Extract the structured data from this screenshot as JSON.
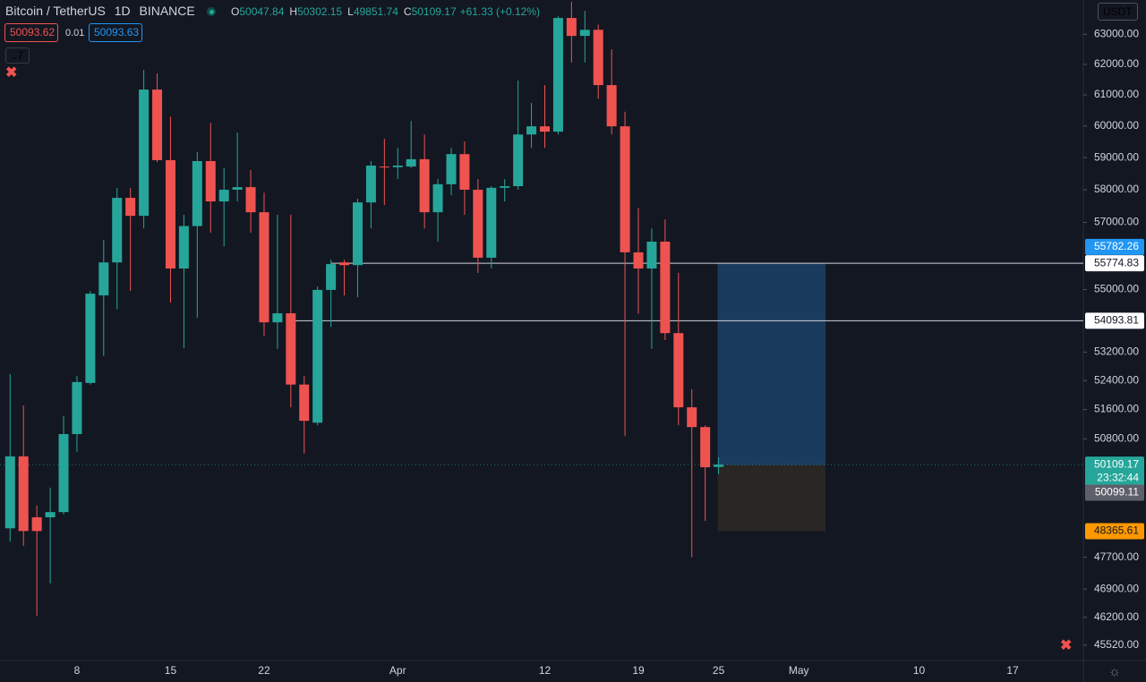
{
  "chart_data": {
    "type": "candlestick",
    "title": "Bitcoin / TetherUS",
    "interval": "1D",
    "exchange": "BINANCE",
    "ohlc_legend": [
      {
        "key": "O",
        "value": "50047.84"
      },
      {
        "key": "H",
        "value": "50302.15"
      },
      {
        "key": "L",
        "value": "49851.74"
      },
      {
        "key": "C",
        "value": "50109.17"
      }
    ],
    "change": "+61.33 (+0.12%)",
    "sell_price": "50093.62",
    "spread": "0.01",
    "buy_price": "50093.63",
    "indicators_count": "7",
    "currency": "USDT",
    "countdown": "23:32:44",
    "log_scale": true,
    "grid": false,
    "up_color": "#26a69a",
    "down_color": "#ef5350",
    "categories": [
      null,
      null,
      null,
      null,
      null,
      "8",
      null,
      null,
      null,
      null,
      null,
      null,
      "15",
      null,
      null,
      null,
      null,
      null,
      null,
      "22",
      null,
      null,
      null,
      null,
      null,
      null,
      null,
      null,
      null,
      "Apr",
      null,
      null,
      null,
      null,
      null,
      null,
      null,
      null,
      null,
      null,
      "12",
      null,
      null,
      null,
      null,
      null,
      null,
      "19",
      null,
      null,
      null,
      null,
      null,
      "25",
      null,
      null,
      null,
      null,
      null,
      "May",
      null,
      null,
      null,
      null,
      null,
      null,
      null,
      null,
      "10",
      null,
      null,
      null,
      null,
      null,
      null,
      "17",
      null,
      null,
      null,
      null,
      null
    ],
    "open": [
      48440,
      50330,
      48725,
      48725,
      48860,
      50930,
      52335,
      54830,
      55800,
      57750,
      57200,
      61175,
      58920,
      55620,
      56890,
      58890,
      57640,
      58000,
      58080,
      57310,
      54050,
      54310,
      52290,
      51240,
      54990,
      55800,
      55720,
      57610,
      58720,
      58700,
      58720,
      58950,
      57310,
      58170,
      59110,
      58000,
      55940,
      58060,
      58110,
      59730,
      59990,
      59820,
      63550,
      62946,
      63150,
      61320,
      59990,
      56100,
      55620,
      56420,
      53740,
      51660,
      51120,
      50047.84,
      null,
      null,
      null,
      null,
      null,
      null,
      null,
      null,
      null,
      null,
      null,
      null,
      null,
      null,
      null,
      null,
      null,
      null,
      null,
      null,
      null,
      null,
      null,
      null,
      null,
      null,
      null
    ],
    "high": [
      52585,
      51710,
      49030,
      49500,
      51420,
      52535,
      54960,
      56470,
      58055,
      58055,
      61820,
      61700,
      60300,
      57230,
      59170,
      60100,
      58670,
      59790,
      58610,
      57910,
      57230,
      57230,
      52535,
      55093,
      55880,
      55880,
      57720,
      58891,
      59590,
      59310,
      60160,
      59730,
      58330,
      59310,
      59510,
      58330,
      58110,
      58330,
      61470,
      60740,
      61320,
      63610,
      64100,
      63790,
      63330,
      62500,
      60460,
      57440,
      56820,
      57090,
      55490,
      52160,
      51170,
      50302.15,
      null,
      null,
      null,
      null,
      null,
      null,
      null,
      null,
      null,
      null,
      null,
      null,
      null,
      null,
      null,
      null,
      null,
      null,
      null,
      null,
      null,
      null,
      null,
      null,
      null,
      null,
      null
    ],
    "low": [
      48100,
      47990,
      46240,
      47040,
      48800,
      50450,
      52290,
      53090,
      54430,
      54960,
      56820,
      58860,
      54620,
      53310,
      54180,
      56690,
      56280,
      57640,
      56690,
      53670,
      53290,
      51660,
      50400,
      51170,
      53920,
      54830,
      54780,
      56820,
      57530,
      58330,
      58670,
      56820,
      56420,
      57830,
      57230,
      55490,
      55620,
      57640,
      58000,
      59310,
      59310,
      59730,
      62060,
      62060,
      60880,
      59730,
      50880,
      54300,
      53290,
      53540,
      51170,
      47700,
      48630,
      49851.74,
      null,
      null,
      null,
      null,
      null,
      null,
      null,
      null,
      null,
      null,
      null,
      null,
      null,
      null,
      null,
      null,
      null,
      null,
      null,
      null,
      null,
      null,
      null,
      null,
      null,
      null,
      null
    ],
    "close": [
      50330,
      48370,
      48370,
      48860,
      50930,
      52360,
      54880,
      55800,
      57750,
      57200,
      61175,
      58920,
      55620,
      56890,
      58890,
      57640,
      58000,
      58080,
      57310,
      54050,
      54310,
      52290,
      51290,
      54990,
      55750,
      55720,
      57610,
      58750,
      58700,
      58750,
      58950,
      57310,
      58170,
      59110,
      58000,
      55940,
      58060,
      58110,
      59730,
      59990,
      59820,
      63550,
      62946,
      63150,
      61320,
      59990,
      56100,
      55620,
      56420,
      53740,
      51660,
      51120,
      50040,
      50109.17,
      null,
      null,
      null,
      null,
      null,
      null,
      null,
      null,
      null,
      null,
      null,
      null,
      null,
      null,
      null,
      null,
      null,
      null,
      null,
      null,
      null,
      null,
      null,
      null,
      null,
      null,
      null
    ],
    "ylim": [
      45150,
      64160
    ],
    "yticks": [
      {
        "value": 63000,
        "label": "63000.00"
      },
      {
        "value": 62000,
        "label": "62000.00"
      },
      {
        "value": 61000,
        "label": "61000.00"
      },
      {
        "value": 60000,
        "label": "60000.00"
      },
      {
        "value": 59000,
        "label": "59000.00"
      },
      {
        "value": 58000,
        "label": "58000.00"
      },
      {
        "value": 57000,
        "label": "57000.00"
      },
      {
        "value": 55000,
        "label": "55000.00"
      },
      {
        "value": 53200,
        "label": "53200.00"
      },
      {
        "value": 52400,
        "label": "52400.00"
      },
      {
        "value": 51600,
        "label": "51600.00"
      },
      {
        "value": 50800,
        "label": "50800.00"
      },
      {
        "value": 47700,
        "label": "47700.00"
      },
      {
        "value": 46900,
        "label": "46900.00"
      },
      {
        "value": 46200,
        "label": "46200.00"
      },
      {
        "value": 45520,
        "label": "45520.00"
      }
    ],
    "price_lines": [
      55774.83,
      54093.81
    ],
    "position": {
      "target": 55774.83,
      "entry": 50099.11,
      "stop": 48365.61,
      "profit_color": "#1b3b5e",
      "loss_color": "#2a2623"
    },
    "price_tags": [
      {
        "value": 55782.26,
        "color": "#2196f3"
      },
      {
        "value": 55774.83,
        "color": "#ffffff"
      },
      {
        "value": 54093.81,
        "color": "#ffffff"
      },
      {
        "value": 50109.17,
        "color": "#26a69a"
      },
      {
        "value": 50099.11,
        "color": "#5d606b"
      },
      {
        "value": 48365.61,
        "color": "#ff9800"
      }
    ]
  }
}
